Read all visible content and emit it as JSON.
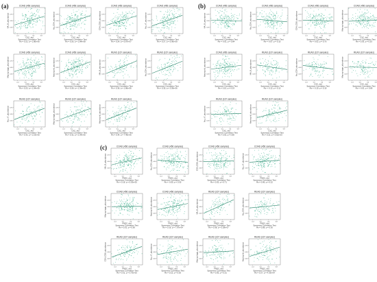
{
  "panel_labels": {
    "a": "(a)",
    "b": "(b)",
    "c": "(c)"
  },
  "colors": {
    "points": "#2aa882",
    "line": "#1e7f63",
    "frame": "#555555"
  },
  "chart_data": [
    {
      "panel": "a",
      "type": "scatter",
      "title": "COAD (456 samples)",
      "xlabel": "CXC_rbd",
      "ylabel": "NA_B_abundance",
      "caption": "Spearman Correlation Test",
      "stats": "Rs = 0.22, p = 1.80e-06",
      "slope": 0.35,
      "x_ticks": [
        "-0.4",
        "0.0",
        "0.4",
        "0.8"
      ],
      "y_ticks": [
        "0.25",
        "0.50",
        "0.75"
      ]
    },
    {
      "panel": "a",
      "type": "scatter",
      "title": "COAD (456 samples)",
      "xlabel": "CXC_rbd",
      "ylabel": "Na_CD4_abundance",
      "caption": "Spearman Correlation Test",
      "stats": "Rs = 0.26, p = 1.84e-08",
      "slope": 0.4,
      "x_ticks": [
        "-0.4",
        "0.0",
        "0.4",
        "0.8"
      ],
      "y_ticks": [
        "0.25",
        "0.50",
        "0.75"
      ]
    },
    {
      "panel": "a",
      "type": "scatter",
      "title": "COAD (456 samples)",
      "xlabel": "CXC_rbd",
      "ylabel": "CD4_CD8_abundance",
      "caption": "Spearman Correlation Test",
      "stats": "Rs = 0.24, p = 5.87e-07",
      "slope": 0.37,
      "x_ticks": [
        "-0.4",
        "0.0",
        "0.4",
        "0.8"
      ],
      "y_ticks": [
        "0.25",
        "0.50",
        "0.75"
      ]
    },
    {
      "panel": "a",
      "type": "scatter",
      "title": "COAD (456 samples)",
      "xlabel": "CXC_rbd",
      "ylabel": "Na_nT_abundance",
      "caption": "Spearman Correlation Test",
      "stats": "Rs = 0.27, p = 5.90e-09",
      "slope": 0.42,
      "x_ticks": [
        "-0.4",
        "0.0",
        "0.4",
        "0.8"
      ],
      "y_ticks": [
        "0.25",
        "0.50",
        "0.75"
      ]
    },
    {
      "panel": "a",
      "type": "scatter",
      "title": "COAD (456 samples)",
      "xlabel": "CXC_rbd",
      "ylabel": "Macrophage_abundance",
      "caption": "Spearman Correlation Test",
      "stats": "Rs = 0.23, p = 1.04e-06",
      "slope": 0.33,
      "x_ticks": [
        "-0.4",
        "0.0",
        "0.4",
        "0.8"
      ],
      "y_ticks": [
        "0.25",
        "0.50",
        "0.75"
      ]
    },
    {
      "panel": "a",
      "type": "scatter",
      "title": "COAD (456 samples)",
      "xlabel": "CXC_rbd",
      "ylabel": "Neutrophil_abundance",
      "caption": "Spearman Correlation Test",
      "stats": "Rs = 0.28, p = 1.34e-09",
      "slope": 0.44,
      "x_ticks": [
        "-0.4",
        "0.0",
        "0.4",
        "0.8"
      ],
      "y_ticks": [
        "0.25",
        "0.50",
        "0.75"
      ]
    },
    {
      "panel": "a",
      "type": "scatter",
      "title": "READ (167 samples)",
      "xlabel": "CXC_rbd",
      "ylabel": "NA_B_abundance",
      "caption": "Spearman Correlation Test",
      "stats": "Rs = 0.36, p = 1.86e-06",
      "slope": 0.5,
      "x_ticks": [
        "-0.4",
        "0.0",
        "0.4",
        "0.8"
      ],
      "y_ticks": [
        "0.25",
        "0.50",
        "0.75"
      ]
    },
    {
      "panel": "a",
      "type": "scatter",
      "title": "READ (167 samples)",
      "xlabel": "CXC_rbd",
      "ylabel": "Na_CD4_abundance",
      "caption": "Spearman Correlation Test",
      "stats": "Rs = 0.35, p = 3.59e-06",
      "slope": 0.48,
      "x_ticks": [
        "-0.4",
        "0.0",
        "0.4",
        "0.8"
      ],
      "y_ticks": [
        "0.25",
        "0.50",
        "0.75"
      ]
    },
    {
      "panel": "a",
      "type": "scatter",
      "title": "READ (167 samples)",
      "xlabel": "CXC_rbd",
      "ylabel": "Na_nT_abundance",
      "caption": "Spearman Correlation Test",
      "stats": "Rs = 0.33, p = 1.19e-05",
      "slope": 0.45,
      "x_ticks": [
        "-0.4",
        "0.0",
        "0.4",
        "0.8"
      ],
      "y_ticks": [
        "0.25",
        "0.50",
        "0.75"
      ]
    },
    {
      "panel": "a",
      "type": "scatter",
      "title": "READ (167 samples)",
      "xlabel": "CXC_rbd",
      "ylabel": "Macrophage_abundance",
      "caption": "Spearman Correlation Test",
      "stats": "Rs = 0.32, p = 2.04e-05",
      "slope": 0.44,
      "x_ticks": [
        "-0.4",
        "0.0",
        "0.4",
        "0.8"
      ],
      "y_ticks": [
        "0.25",
        "0.50",
        "0.75"
      ]
    },
    {
      "panel": "a",
      "type": "scatter",
      "title": "READ (167 samples)",
      "xlabel": "CXC_rbd",
      "ylabel": "Neutrophil_abundance",
      "caption": "Spearman Correlation Test",
      "stats": "Rs = 0.34, p = 7.49e-06",
      "slope": 0.47,
      "x_ticks": [
        "-0.4",
        "0.0",
        "0.4",
        "0.8"
      ],
      "y_ticks": [
        "0.25",
        "0.50",
        "0.75"
      ]
    },
    {
      "panel": "b",
      "type": "scatter",
      "title": "COAD (456 samples)",
      "xlabel": "CXC_rbd",
      "ylabel": "NA_B_abundance",
      "caption": "Spearman Correlation Test",
      "stats": "Rs = -0.01, p = 0.84",
      "slope": -0.02,
      "x_ticks": [
        "-0.4",
        "0.0",
        "0.4",
        "0.8"
      ],
      "y_ticks": [
        "0.25",
        "0.50",
        "0.75"
      ]
    },
    {
      "panel": "b",
      "type": "scatter",
      "title": "COAD (456 samples)",
      "xlabel": "CXC_rbd",
      "ylabel": "Na_CD4_abundance",
      "caption": "Spearman Correlation Test",
      "stats": "Rs = -0.07, p = 0.15",
      "slope": -0.1,
      "x_ticks": [
        "-0.4",
        "0.0",
        "0.4",
        "0.8"
      ],
      "y_ticks": [
        "0.25",
        "0.50",
        "0.75"
      ]
    },
    {
      "panel": "b",
      "type": "scatter",
      "title": "COAD (456 samples)",
      "xlabel": "CXC_rbd",
      "ylabel": "CD4_CD8_abundance",
      "caption": "Spearman Correlation Test",
      "stats": "Rs = -0.02, p = 0.70",
      "slope": -0.04,
      "x_ticks": [
        "-0.4",
        "0.0",
        "0.4",
        "0.8"
      ],
      "y_ticks": [
        "0.25",
        "0.50",
        "0.75"
      ]
    },
    {
      "panel": "b",
      "type": "scatter",
      "title": "COAD (456 samples)",
      "xlabel": "CXC_rbd",
      "ylabel": "Macrophage_abundance",
      "caption": "Spearman Correlation Test",
      "stats": "Rs = 0.03, p = 0.53",
      "slope": 0.05,
      "x_ticks": [
        "-0.4",
        "0.0",
        "0.4",
        "0.8"
      ],
      "y_ticks": [
        "0.25",
        "0.50",
        "0.75"
      ]
    },
    {
      "panel": "b",
      "type": "scatter",
      "title": "COAD (456 samples)",
      "xlabel": "CXC_rbd",
      "ylabel": "Neutrophil_abundance",
      "caption": "Spearman Correlation Test",
      "stats": "Rs = 0.10, p = 0.03",
      "slope": 0.15,
      "x_ticks": [
        "-0.4",
        "0.0",
        "0.4",
        "0.8"
      ],
      "y_ticks": [
        "0.25",
        "0.50",
        "0.75"
      ]
    },
    {
      "panel": "b",
      "type": "scatter",
      "title": "READ (167 samples)",
      "xlabel": "CXC_rbd",
      "ylabel": "NA_B_abundance",
      "caption": "Spearman Correlation Test",
      "stats": "Rs = -0.12, p = 0.12",
      "slope": -0.18,
      "x_ticks": [
        "-0.4",
        "0.0",
        "0.4",
        "0.8"
      ],
      "y_ticks": [
        "0.25",
        "0.50",
        "0.75"
      ]
    },
    {
      "panel": "b",
      "type": "scatter",
      "title": "READ (167 samples)",
      "xlabel": "CXC_rbd",
      "ylabel": "Na_CD4_abundance",
      "caption": "Spearman Correlation Test",
      "stats": "Rs = -0.10, p = 0.19",
      "slope": -0.14,
      "x_ticks": [
        "-0.4",
        "0.0",
        "0.4",
        "0.8"
      ],
      "y_ticks": [
        "0.25",
        "0.50",
        "0.75"
      ]
    },
    {
      "panel": "b",
      "type": "scatter",
      "title": "READ (167 samples)",
      "xlabel": "CXC_rbd",
      "ylabel": "Macrophage_abundance",
      "caption": "Spearman Correlation Test",
      "stats": "Rs = -0.01, p = 0.89",
      "slope": -0.02,
      "x_ticks": [
        "-0.4",
        "0.0",
        "0.4",
        "0.8"
      ],
      "y_ticks": [
        "0.25",
        "0.50",
        "0.75"
      ]
    },
    {
      "panel": "b",
      "type": "scatter",
      "title": "READ (167 samples)",
      "xlabel": "CXC_rbd",
      "ylabel": "Na_nT_abundance",
      "caption": "Spearman Correlation Test",
      "stats": "Rs = 0.02, p = 0.80",
      "slope": 0.03,
      "x_ticks": [
        "-0.4",
        "0.0",
        "0.4",
        "0.8"
      ],
      "y_ticks": [
        "0.25",
        "0.50",
        "0.75"
      ]
    },
    {
      "panel": "b",
      "type": "scatter",
      "title": "READ (167 samples)",
      "xlabel": "CXC_rbd",
      "ylabel": "Neutrophil_abundance",
      "caption": "Spearman Correlation Test",
      "stats": "Rs = 0.22, p = 3.62e-03",
      "slope": 0.3,
      "x_ticks": [
        "-0.4",
        "0.0",
        "0.4",
        "0.8"
      ],
      "y_ticks": [
        "0.25",
        "0.50",
        "0.75"
      ]
    },
    {
      "panel": "c",
      "type": "scatter",
      "title": "COAD (456 samples)",
      "xlabel": "FNDC_rbd",
      "ylabel": "NA_B_abundance",
      "caption": "Spearman Correlation Test",
      "stats": "Rs = 0.19, p = 5.53e-05",
      "slope": 0.28,
      "x_ticks": [
        "-0.4",
        "0.0",
        "0.4",
        "0.8"
      ],
      "y_ticks": [
        "0.25",
        "0.50",
        "0.75"
      ]
    },
    {
      "panel": "c",
      "type": "scatter",
      "title": "COAD (456 samples)",
      "xlabel": "FNDC_rbd",
      "ylabel": "Na_CD4_abundance",
      "caption": "Spearman Correlation Test",
      "stats": "Rs = -0.05, p = 0.30",
      "slope": -0.08,
      "x_ticks": [
        "-0.4",
        "0.0",
        "0.4",
        "0.8"
      ],
      "y_ticks": [
        "0.25",
        "0.50",
        "0.75"
      ]
    },
    {
      "panel": "c",
      "type": "scatter",
      "title": "COAD (456 samples)",
      "xlabel": "FNDC_rbd",
      "ylabel": "CD4_CD8_abundance",
      "caption": "Spearman Correlation Test",
      "stats": "Rs = 0.02, p = 0.71",
      "slope": 0.03,
      "x_ticks": [
        "-0.4",
        "0.0",
        "0.4",
        "0.8"
      ],
      "y_ticks": [
        "0.25",
        "0.50",
        "0.75"
      ]
    },
    {
      "panel": "c",
      "type": "scatter",
      "title": "COAD (456 samples)",
      "xlabel": "FNDC_rbd",
      "ylabel": "Na_nT_abundance",
      "caption": "Spearman Correlation Test",
      "stats": "Rs = 0.06, p = 0.22",
      "slope": 0.08,
      "x_ticks": [
        "-0.4",
        "0.0",
        "0.4",
        "0.8"
      ],
      "y_ticks": [
        "0.25",
        "0.50",
        "0.75"
      ]
    },
    {
      "panel": "c",
      "type": "scatter",
      "title": "COAD (456 samples)",
      "xlabel": "FNDC_rbd",
      "ylabel": "Macrophage_abundance",
      "caption": "Spearman Correlation Test",
      "stats": "Rs = 0.01, p = 0.90",
      "slope": 0.01,
      "x_ticks": [
        "-0.4",
        "0.0",
        "0.4",
        "0.8"
      ],
      "y_ticks": [
        "0.25",
        "0.50",
        "0.75"
      ]
    },
    {
      "panel": "c",
      "type": "scatter",
      "title": "COAD (456 samples)",
      "xlabel": "FNDC_rbd",
      "ylabel": "Neutrophil_abundance",
      "caption": "Spearman Correlation Test",
      "stats": "Rs = 0.16, p = 7.97e-04",
      "slope": 0.24,
      "x_ticks": [
        "-0.4",
        "0.0",
        "0.4",
        "0.8"
      ],
      "y_ticks": [
        "0.25",
        "0.50",
        "0.75"
      ]
    },
    {
      "panel": "c",
      "type": "scatter",
      "title": "READ (167 samples)",
      "xlabel": "FNDC_rbd",
      "ylabel": "NA_B_abundance",
      "caption": "Spearman Correlation Test",
      "stats": "Rs = 0.38, p = 3.28e-07",
      "slope": 0.55,
      "x_ticks": [
        "-0.4",
        "0.0",
        "0.4",
        "0.8"
      ],
      "y_ticks": [
        "0.25",
        "0.50",
        "0.75"
      ]
    },
    {
      "panel": "c",
      "type": "scatter",
      "title": "READ (167 samples)",
      "xlabel": "FNDC_rbd",
      "ylabel": "Na_CD4_abundance",
      "caption": "Spearman Correlation Test",
      "stats": "Rs = 0.08, p = 0.30",
      "slope": 0.12,
      "x_ticks": [
        "-0.4",
        "0.0",
        "0.4",
        "0.8"
      ],
      "y_ticks": [
        "0.25",
        "0.50",
        "0.75"
      ]
    },
    {
      "panel": "c",
      "type": "scatter",
      "title": "READ (167 samples)",
      "xlabel": "FNDC_rbd",
      "ylabel": "CD4_CD8_abundance",
      "caption": "Spearman Correlation Test",
      "stats": "Rs = 0.31, p = 3.75e-05",
      "slope": 0.42,
      "x_ticks": [
        "-0.4",
        "0.0",
        "0.4",
        "0.8"
      ],
      "y_ticks": [
        "0.25",
        "0.50",
        "0.75"
      ]
    },
    {
      "panel": "c",
      "type": "scatter",
      "title": "READ (167 samples)",
      "xlabel": "FNDC_rbd",
      "ylabel": "Na_nT_abundance",
      "caption": "Spearman Correlation Test",
      "stats": "Rs = 0.15, p = 0.05",
      "slope": 0.21,
      "x_ticks": [
        "-0.4",
        "0.0",
        "0.4",
        "0.8"
      ],
      "y_ticks": [
        "0.25",
        "0.50",
        "0.75"
      ]
    },
    {
      "panel": "c",
      "type": "scatter",
      "title": "READ (167 samples)",
      "xlabel": "FNDC_rbd",
      "ylabel": "Macrophage_abundance",
      "caption": "Spearman Correlation Test",
      "stats": "Rs = 0.05, p = 0.51",
      "slope": 0.07,
      "x_ticks": [
        "-0.4",
        "0.0",
        "0.4",
        "0.8"
      ],
      "y_ticks": [
        "0.25",
        "0.50",
        "0.75"
      ]
    },
    {
      "panel": "c",
      "type": "scatter",
      "title": "READ (167 samples)",
      "xlabel": "FNDC_rbd",
      "ylabel": "Neutrophil_abundance",
      "caption": "Spearman Correlation Test",
      "stats": "Rs = 0.27, p = 4.33e-04",
      "slope": 0.37,
      "x_ticks": [
        "-0.4",
        "0.0",
        "0.4",
        "0.8"
      ],
      "y_ticks": [
        "0.25",
        "0.50",
        "0.75"
      ]
    }
  ]
}
